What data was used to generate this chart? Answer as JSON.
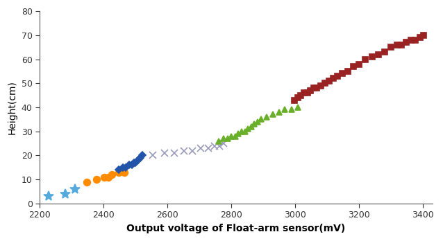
{
  "series": [
    {
      "name": "cyan_asterisk",
      "color": "#55AADD",
      "marker": "*",
      "markersize": 10,
      "x": [
        2228,
        2280,
        2310
      ],
      "y": [
        3,
        4,
        6
      ]
    },
    {
      "name": "orange_circle",
      "color": "#FF8C00",
      "marker": "o",
      "markersize": 7,
      "x": [
        2348,
        2378,
        2402,
        2415,
        2425,
        2448,
        2465
      ],
      "y": [
        9,
        10,
        11,
        11,
        12,
        13,
        13
      ]
    },
    {
      "name": "blue_diamond",
      "color": "#2255AA",
      "marker": "D",
      "markersize": 5,
      "x": [
        2448,
        2460,
        2470,
        2480,
        2488,
        2495,
        2500,
        2508,
        2515,
        2522
      ],
      "y": [
        14,
        15,
        15,
        16,
        16,
        17,
        17,
        18,
        19,
        20
      ]
    },
    {
      "name": "gray_x",
      "color": "#9999BB",
      "marker": "x",
      "markersize": 7,
      "x": [
        2555,
        2590,
        2622,
        2652,
        2678,
        2705,
        2728,
        2748,
        2762,
        2775
      ],
      "y": [
        20,
        21,
        21,
        22,
        22,
        23,
        23,
        24,
        24,
        25
      ]
    },
    {
      "name": "green_triangle",
      "color": "#6AAF2A",
      "marker": "^",
      "markersize": 6,
      "x": [
        2760,
        2775,
        2788,
        2800,
        2812,
        2822,
        2832,
        2842,
        2852,
        2862,
        2872,
        2882,
        2892,
        2910,
        2930,
        2950,
        2968,
        2988,
        3008
      ],
      "y": [
        26,
        27,
        27,
        28,
        28,
        29,
        30,
        30,
        31,
        32,
        33,
        34,
        35,
        36,
        37,
        38,
        39,
        39,
        40
      ]
    },
    {
      "name": "darkred_square",
      "color": "#992222",
      "marker": "s",
      "markersize": 6,
      "x": [
        2998,
        3008,
        3018,
        3028,
        3038,
        3048,
        3058,
        3068,
        3080,
        3092,
        3105,
        3118,
        3132,
        3148,
        3165,
        3182,
        3200,
        3220,
        3240,
        3260,
        3280,
        3300,
        3318,
        3332,
        3348,
        3362,
        3375,
        3390,
        3402
      ],
      "y": [
        43,
        44,
        45,
        46,
        46,
        47,
        48,
        48,
        49,
        50,
        51,
        52,
        53,
        54,
        55,
        57,
        58,
        60,
        61,
        62,
        63,
        65,
        66,
        66,
        67,
        68,
        68,
        69,
        70
      ]
    }
  ],
  "xlim": [
    2200,
    3430
  ],
  "ylim": [
    0,
    80
  ],
  "xticks": [
    2200,
    2400,
    2600,
    2800,
    3000,
    3200,
    3400
  ],
  "yticks": [
    0,
    10,
    20,
    30,
    40,
    50,
    60,
    70,
    80
  ],
  "xlabel": "Output voltage of Float-arm sensor(mV)",
  "ylabel": "Height(cm)",
  "xlabel_fontsize": 10,
  "ylabel_fontsize": 10,
  "bg_color": "#FFFFFF"
}
